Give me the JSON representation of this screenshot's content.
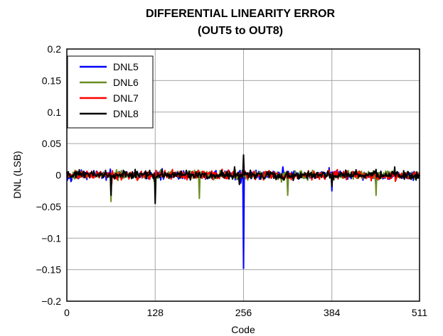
{
  "chart_data": {
    "type": "line",
    "title": "DIFFERENTIAL LINEARITY ERROR",
    "subtitle": "(OUT5 to OUT8)",
    "xlabel": "Code",
    "ylabel": "DNL (LSB)",
    "xlim": [
      0,
      511
    ],
    "ylim": [
      -0.2,
      0.2
    ],
    "x_ticks": [
      "0",
      "128",
      "256",
      "384",
      "511"
    ],
    "y_ticks": [
      "0.2",
      "0.15",
      "0.1",
      "0.05",
      "0",
      "−0.05",
      "−0.1",
      "−0.15",
      "−0.2"
    ],
    "grid": true,
    "legend_position": "top-left",
    "noise_amplitude": 0.01,
    "series": [
      {
        "name": "DNL5",
        "color": "#0000ff",
        "spikes": [
          [
            256,
            -0.148
          ],
          [
            320,
            -0.025
          ],
          [
            384,
            -0.025
          ],
          [
            448,
            -0.02
          ]
        ]
      },
      {
        "name": "DNL6",
        "color": "#6b8e23",
        "spikes": [
          [
            64,
            -0.042
          ],
          [
            192,
            -0.037
          ],
          [
            320,
            -0.032
          ],
          [
            448,
            -0.032
          ]
        ]
      },
      {
        "name": "DNL7",
        "color": "#ff0000",
        "spikes": [
          [
            128,
            -0.015
          ],
          [
            256,
            0.012
          ],
          [
            384,
            -0.015
          ]
        ]
      },
      {
        "name": "DNL8",
        "color": "#000000",
        "spikes": [
          [
            64,
            -0.032
          ],
          [
            128,
            -0.045
          ],
          [
            256,
            0.032
          ],
          [
            384,
            -0.018
          ]
        ]
      }
    ]
  }
}
